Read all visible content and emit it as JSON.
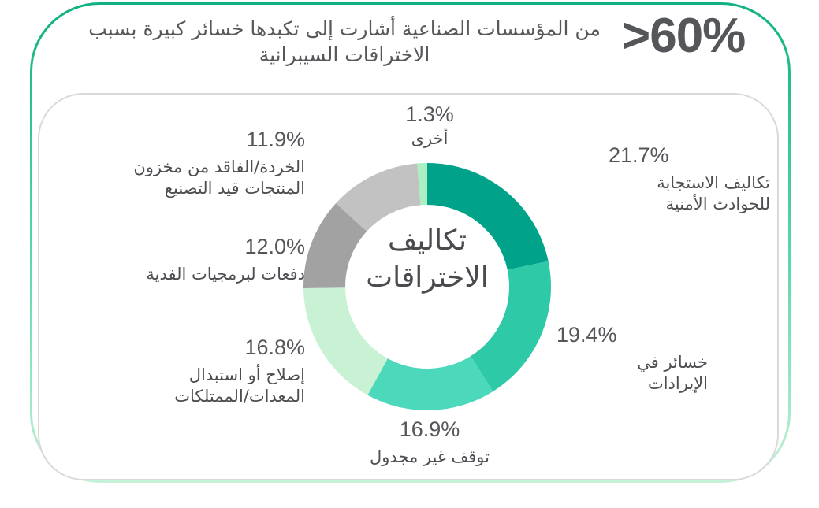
{
  "header": {
    "big_stat": ">60%",
    "description": "من المؤسسات الصناعية أشارت إلى تكبدها خسائر كبيرة بسبب الاختراقات السيبرانية"
  },
  "donut": {
    "center_line1": "تكاليف",
    "center_line2": "الاختراقات"
  },
  "callouts": [
    {
      "pct": "21.7%",
      "line1": "تكاليف الاستجابة",
      "line2": "للحوادث الأمنية"
    },
    {
      "pct": "19.4%",
      "line1": "خسائر في",
      "line2": "الإيرادات"
    },
    {
      "pct": "16.9%",
      "line1": "توقف غير مجدول",
      "line2": ""
    },
    {
      "pct": "16.8%",
      "line1": "إصلاح أو استبدال",
      "line2": "المعدات/الممتلكات"
    },
    {
      "pct": "12.0%",
      "line1": "دفعات لبرمجيات الفدية",
      "line2": ""
    },
    {
      "pct": "11.9%",
      "line1": "الخردة/الفاقد من مخزون",
      "line2": "المنتجات قيد التصنيع"
    },
    {
      "pct": "1.3%",
      "line1": "أخرى",
      "line2": ""
    }
  ],
  "colors": {
    "frame_gradient_top": "#0FB183",
    "frame_gradient_bottom": "#C7F1D8",
    "card_border": "#D9D9D9",
    "text_dark": "#55565A"
  },
  "chart_data": {
    "type": "pie",
    "subtype": "donut",
    "title": "تكاليف الاختراقات",
    "center_label": "تكاليف الاختراقات",
    "legend_position": "callouts-around-donut",
    "rotation": "clockwise-from-top",
    "segments": [
      {
        "label": "تكاليف الاستجابة للحوادث الأمنية",
        "value": 21.7,
        "color": "#00A389"
      },
      {
        "label": "خسائر في الإيرادات",
        "value": 19.4,
        "color": "#2EC9A7"
      },
      {
        "label": "توقف غير مجدول",
        "value": 16.9,
        "color": "#4BD8BB"
      },
      {
        "label": "إصلاح أو استبدال المعدات/الممتلكات",
        "value": 16.8,
        "color": "#C9F2D4"
      },
      {
        "label": "دفعات لبرمجيات الفدية",
        "value": 12.0,
        "color": "#A2A2A2"
      },
      {
        "label": "الخردة/الفاقد من مخزون المنتجات قيد التصنيع",
        "value": 11.9,
        "color": "#C2C2C2"
      },
      {
        "label": "أخرى",
        "value": 1.3,
        "color": "#ABEFC3"
      }
    ]
  }
}
